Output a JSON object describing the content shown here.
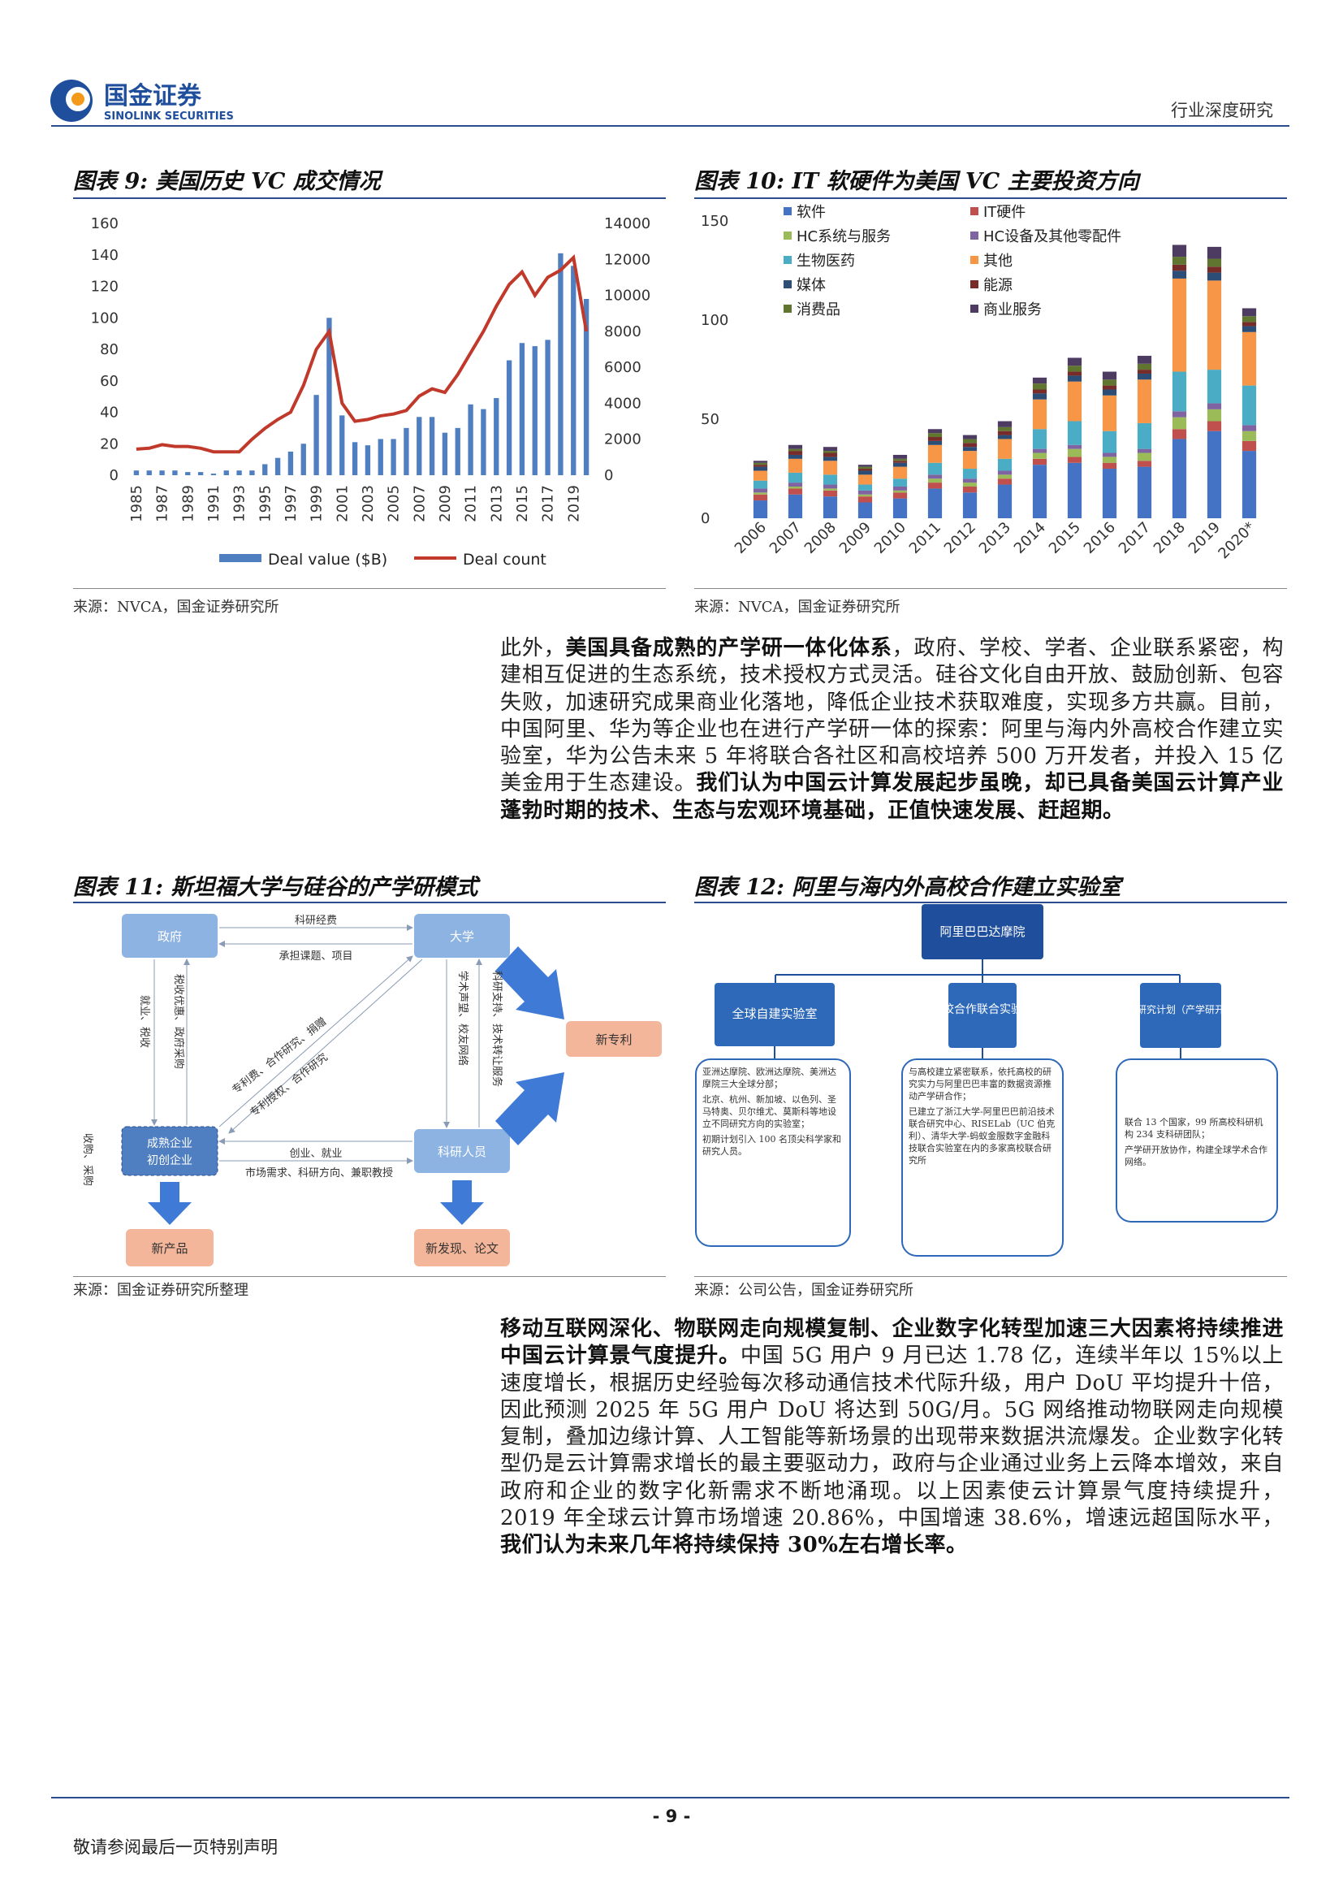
{
  "header": {
    "logo_cn": "国金证券",
    "logo_en": "SINOLINK SECURITIES",
    "right_text": "行业深度研究",
    "colors": {
      "brand_blue": "#1f4e9c",
      "accent_orange": "#f39a1a"
    }
  },
  "fig9": {
    "title": "图表 9: 美国历史 VC 成交情况",
    "source": "来源：NVCA，国金证券研究所",
    "chart_data": {
      "type": "bar+line",
      "categories": [
        "1985",
        "1986",
        "1987",
        "1988",
        "1989",
        "1990",
        "1991",
        "1992",
        "1993",
        "1994",
        "1995",
        "1996",
        "1997",
        "1998",
        "1999",
        "2000",
        "2001",
        "2002",
        "2003",
        "2004",
        "2005",
        "2006",
        "2007",
        "2008",
        "2009",
        "2010",
        "2011",
        "2012",
        "2013",
        "2014",
        "2015",
        "2016",
        "2017",
        "2018",
        "2019",
        "2020"
      ],
      "x_tick_labels": [
        "1985",
        "1987",
        "1989",
        "1991",
        "1993",
        "1995",
        "1997",
        "1999",
        "2001",
        "2003",
        "2005",
        "2007",
        "2009",
        "2011",
        "2013",
        "2015",
        "2017",
        "2019"
      ],
      "series": [
        {
          "name": "Deal value ($B)",
          "axis": "left",
          "color": "#4f7fc1",
          "values": [
            3,
            3,
            3,
            3,
            2,
            2,
            1,
            3,
            3,
            3,
            7,
            11,
            15,
            20,
            51,
            100,
            38,
            21,
            19,
            23,
            23,
            30,
            37,
            37,
            27,
            30,
            45,
            42,
            49,
            73,
            84,
            82,
            86,
            141,
            133,
            112
          ]
        },
        {
          "name": "Deal count",
          "axis": "right",
          "color": "#c0392b",
          "values": [
            1450,
            1500,
            1700,
            1600,
            1600,
            1500,
            1300,
            1300,
            1300,
            2000,
            2600,
            3100,
            3500,
            5000,
            7000,
            8000,
            4000,
            3000,
            3100,
            3300,
            3400,
            3600,
            4400,
            4800,
            4600,
            5600,
            6800,
            8000,
            9400,
            10600,
            11300,
            10000,
            11000,
            11400,
            12100,
            8000
          ]
        }
      ],
      "ylim_left": [
        0,
        160
      ],
      "yticks_left": [
        "160",
        "140",
        "120",
        "100",
        "80",
        "60",
        "40",
        "20",
        "0"
      ],
      "ylim_right": [
        0,
        14000
      ],
      "yticks_right": [
        "14000",
        "12000",
        "10000",
        "8000",
        "6000",
        "4000",
        "2000",
        "0"
      ],
      "legend": [
        "Deal value ($B)",
        "Deal count"
      ],
      "legend_position": "bottom"
    }
  },
  "fig10": {
    "title": "图表 10: IT 软硬件为美国 VC 主要投资方向",
    "source": "来源：NVCA，国金证券研究所",
    "chart_data": {
      "type": "stacked-bar",
      "categories": [
        "2006",
        "2007",
        "2008",
        "2009",
        "2010",
        "2011",
        "2012",
        "2013",
        "2014",
        "2015",
        "2016",
        "2017",
        "2018",
        "2019",
        "2020*"
      ],
      "ylim": [
        0,
        155
      ],
      "yticks": [
        "150",
        "100",
        "50",
        "0"
      ],
      "legend_position": "top-left",
      "series": [
        {
          "name": "软件",
          "color": "#4472c4",
          "values": [
            9,
            12,
            11,
            8,
            10,
            15,
            13,
            17,
            27,
            28,
            25,
            26,
            40,
            44,
            34
          ]
        },
        {
          "name": "IT硬件",
          "color": "#c0504d",
          "values": [
            3,
            3,
            3,
            3,
            3,
            3,
            3,
            3,
            3,
            3,
            3,
            3,
            5,
            5,
            5
          ]
        },
        {
          "name": "HC系统与服务",
          "color": "#9bbb59",
          "values": [
            1,
            1,
            1,
            1,
            1,
            2,
            2,
            2,
            3,
            4,
            3,
            4,
            6,
            6,
            5
          ]
        },
        {
          "name": "HC设备及其他零配件",
          "color": "#8064a2",
          "values": [
            2,
            2,
            2,
            2,
            2,
            2,
            2,
            2,
            2,
            2,
            2,
            2,
            3,
            3,
            3
          ]
        },
        {
          "name": "生物医药",
          "color": "#4bacc6",
          "values": [
            4,
            5,
            5,
            3,
            4,
            6,
            5,
            6,
            10,
            12,
            11,
            13,
            20,
            17,
            20
          ]
        },
        {
          "name": "其他",
          "color": "#f79646",
          "values": [
            5,
            7,
            7,
            5,
            6,
            9,
            9,
            10,
            15,
            20,
            18,
            22,
            47,
            45,
            27
          ]
        },
        {
          "name": "媒体",
          "color": "#2c4d75",
          "values": [
            2,
            2,
            2,
            2,
            2,
            2,
            2,
            2,
            3,
            3,
            3,
            3,
            4,
            4,
            3
          ]
        },
        {
          "name": "能源",
          "color": "#772c2a",
          "values": [
            1,
            2,
            2,
            1,
            1,
            2,
            2,
            2,
            2,
            2,
            2,
            2,
            3,
            3,
            2
          ]
        },
        {
          "name": "消费品",
          "color": "#5f7530",
          "values": [
            1,
            1,
            1,
            1,
            1,
            2,
            2,
            2,
            3,
            3,
            3,
            3,
            4,
            4,
            3
          ]
        },
        {
          "name": "商业服务",
          "color": "#4d3b62",
          "values": [
            1,
            2,
            2,
            1,
            2,
            2,
            2,
            3,
            3,
            4,
            4,
            4,
            6,
            6,
            4
          ]
        }
      ]
    }
  },
  "para1": {
    "p1": "此外，",
    "b1": "美国具备成熟的产学研一体化体系",
    "p2": "，政府、学校、学者、企业联系紧密，构建相互促进的生态系统，技术授权方式灵活。硅谷文化自由开放、鼓励创新、包容失败，加速研究成果商业化落地，降低企业技术获取难度，实现多方共赢。目前，中国阿里、华为等企业也在进行产学研一体的探索：阿里与海内外高校合作建立实验室，华为公告未来 5 年将联合各社区和高校培养 500 万开发者，并投入 15 亿美金用于生态建设。",
    "b2": "我们认为中国云计算发展起步虽晚，却已具备美国云计算产业蓬勃时期的技术、生态与宏观环境基础，正值快速发展、赶超期。"
  },
  "fig11": {
    "title": "图表 11: 斯坦福大学与硅谷的产学研模式",
    "source": "来源：国金证券研究所整理",
    "nodes": {
      "gov": "政府",
      "univ": "大学",
      "firm1": "成熟企业",
      "firm2": "初创企业",
      "research": "科研人员",
      "patent": "新专利",
      "product": "新产品",
      "discovery": "新发现、论文"
    },
    "labels": {
      "funding": "科研经费",
      "projects": "承担课题、项目",
      "tax_v": "税收优惠、政府采购",
      "jobs_v": "就业、税收",
      "tech_v": "科研支持、技术转让服务",
      "fame_v": "学术声望、校友网络",
      "diag1": "专利费、合作研究、捐赠",
      "diag2": "专利授权、合作研究",
      "startup": "创业、就业",
      "market": "市场需求、科研方向、兼职教授",
      "acq": "收购、采购"
    }
  },
  "fig12": {
    "title": "图表 12: 阿里与海内外高校合作建立实验室",
    "source": "来源：公司公告，国金证券研究所",
    "top": "阿里巴巴达摩院",
    "branches": [
      {
        "head": "全球自建实验室",
        "items": [
          "亚洲达摩院、欧洲达摩院、美洲达摩院三大全球分部；",
          "北京、杭州、新加坡、以色列、圣马特奥、贝尔维尤、莫斯科等地设立不同研究方向的实验室；",
          "初期计划引入 100 名顶尖科学家和研究人员。"
        ]
      },
      {
        "head": "高校合作联合实验室",
        "items": [
          "与高校建立紧密联系，依托高校的研究实力与阿里巴巴丰富的数据资源推动产学研合作；",
          "已建立了浙江大学-阿里巴巴前沿技术联合研究中心、RISELab（UC 伯克利）、清华大学-蚂蚁金服数字金融科技联合实验室在内的多家高校联合研究所"
        ]
      },
      {
        "head": "全球开放研究计划（产学研开放协作）",
        "items": [
          "联合 13 个国家，99 所高校科研机构 234 支科研团队；",
          "产学研开放协作，构建全球学术合作网络。"
        ]
      }
    ]
  },
  "para2": {
    "b1": "移动互联网深化、物联网走向规模复制、企业数字化转型加速三大因素将持续推进中国云计算景气度提升。",
    "p1": "中国 5G 用户 9 月已达 1.78 亿，连续半年以 15%以上速度增长，根据历史经验每次移动通信技术代际升级，用户 DoU 平均提升十倍，因此预测 2025 年 5G 用户 DoU 将达到 50G/月。5G 网络推动物联网走向规模复制，叠加边缘计算、人工智能等新场景的出现带来数据洪流爆发。企业数字化转型仍是云计算需求增长的最主要驱动力，政府与企业通过业务上云降本增效，来自政府和企业的数字化新需求不断地涌现。以上因素使云计算景气度持续提升，2019 年全球云计算市场增速 20.86%，中国增速 38.6%，增速远超国际水平，",
    "b2": "我们认为未来几年将持续保持 30%左右增长率。"
  },
  "footer": {
    "page": "- 9 -",
    "note": "敬请参阅最后一页特别声明"
  }
}
